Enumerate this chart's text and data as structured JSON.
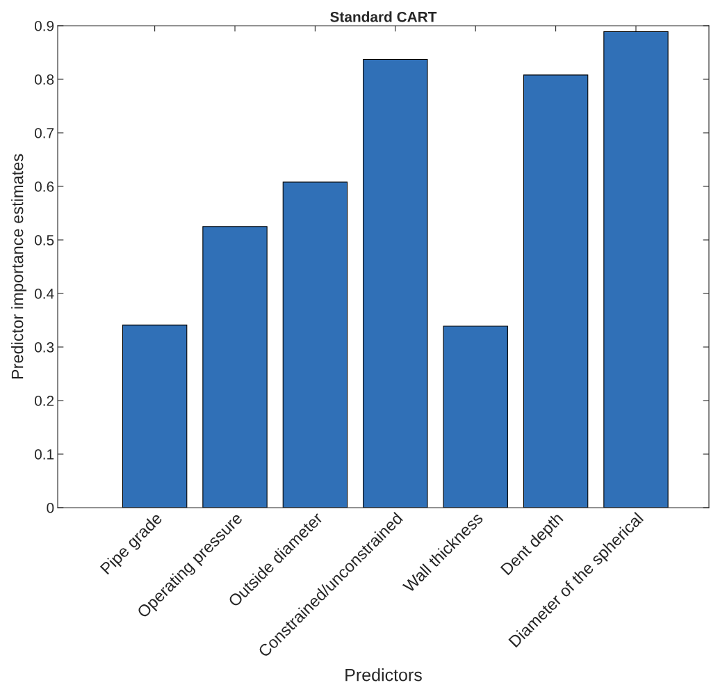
{
  "chart_data": {
    "type": "bar",
    "title": "Standard CART",
    "xlabel": "Predictors",
    "ylabel": "Predictor importance estimates",
    "categories": [
      "Pipe grade",
      "Operating pressure",
      "Outside diameter",
      "Constrained/unconstrained",
      "Wall thickness",
      "Dent depth",
      "Diameter of the spherical"
    ],
    "values": [
      0.341,
      0.525,
      0.608,
      0.837,
      0.339,
      0.808,
      0.889
    ],
    "color": "#3070b7",
    "ylim": [
      0,
      0.9
    ],
    "yticks": [
      0,
      0.1,
      0.2,
      0.3,
      0.4,
      0.5,
      0.6,
      0.7,
      0.8,
      0.9
    ],
    "grid": false
  }
}
